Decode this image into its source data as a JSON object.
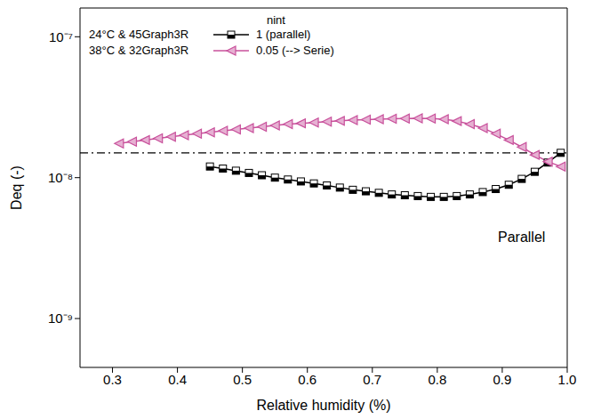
{
  "chart_data": {
    "type": "line",
    "x_label": "Relative humidity (%)",
    "y_label": "Deq (-)",
    "log": "y",
    "xlim": [
      0.25,
      1.0
    ],
    "xticks": [
      0.3,
      0.4,
      0.5,
      0.6,
      0.7,
      0.8,
      0.9,
      {
        "value": 1.0,
        "label": "1.0"
      }
    ],
    "ylim": [
      4.5e-10,
      1.6e-07
    ],
    "yticks": [
      {
        "value": 1e-09,
        "label": "10⁻⁹"
      },
      {
        "value": 1e-08,
        "label": "10⁻⁸"
      },
      {
        "value": 1e-07,
        "label": "10⁻⁷"
      }
    ],
    "legend": "top-left",
    "legend_title": "nint",
    "annotations": [
      "Parallel"
    ],
    "reference_line": {
      "y": 1.5e-08,
      "line_style": "dashdot",
      "color": "#000000"
    },
    "series": [
      {
        "name": "24°C & 45Graph3R",
        "n_int": "1 (parallel)",
        "color": "#000000",
        "marker": "square",
        "line_style": "solid",
        "x": [
          0.45,
          0.47,
          0.49,
          0.51,
          0.53,
          0.55,
          0.57,
          0.59,
          0.61,
          0.63,
          0.65,
          0.67,
          0.69,
          0.71,
          0.73,
          0.75,
          0.77,
          0.79,
          0.81,
          0.83,
          0.85,
          0.87,
          0.89,
          0.91,
          0.93,
          0.95,
          0.97,
          0.99
        ],
        "values": [
          1.2e-08,
          1.16e-08,
          1.12e-08,
          1.08e-08,
          1.04e-08,
          1e-08,
          9.7e-09,
          9.4e-09,
          9.1e-09,
          8.8e-09,
          8.5e-09,
          8.2e-09,
          8e-09,
          7.8e-09,
          7.6e-09,
          7.5e-09,
          7.4e-09,
          7.3e-09,
          7.3e-09,
          7.4e-09,
          7.6e-09,
          7.9e-09,
          8.3e-09,
          8.9e-09,
          9.8e-09,
          1.1e-08,
          1.28e-08,
          1.5e-08
        ]
      },
      {
        "name": "38°C & 32Graph3R",
        "n_int": "0.05 (--> Serie)",
        "color": "#c8509b",
        "marker": "triangle-left",
        "line_style": "solid",
        "x": [
          0.31,
          0.33,
          0.35,
          0.37,
          0.39,
          0.41,
          0.43,
          0.45,
          0.47,
          0.49,
          0.51,
          0.53,
          0.55,
          0.57,
          0.59,
          0.61,
          0.63,
          0.65,
          0.67,
          0.69,
          0.71,
          0.73,
          0.75,
          0.77,
          0.79,
          0.81,
          0.83,
          0.85,
          0.87,
          0.89,
          0.91,
          0.93,
          0.95,
          0.97,
          0.99
        ],
        "values": [
          1.75e-08,
          1.8e-08,
          1.85e-08,
          1.9e-08,
          1.95e-08,
          2e-08,
          2.05e-08,
          2.1e-08,
          2.15e-08,
          2.2e-08,
          2.25e-08,
          2.3e-08,
          2.35e-08,
          2.4e-08,
          2.43e-08,
          2.46e-08,
          2.5e-08,
          2.53e-08,
          2.56e-08,
          2.58e-08,
          2.6e-08,
          2.62e-08,
          2.63e-08,
          2.64e-08,
          2.63e-08,
          2.6e-08,
          2.52e-08,
          2.4e-08,
          2.25e-08,
          2.05e-08,
          1.85e-08,
          1.65e-08,
          1.45e-08,
          1.3e-08,
          1.2e-08
        ]
      }
    ]
  }
}
